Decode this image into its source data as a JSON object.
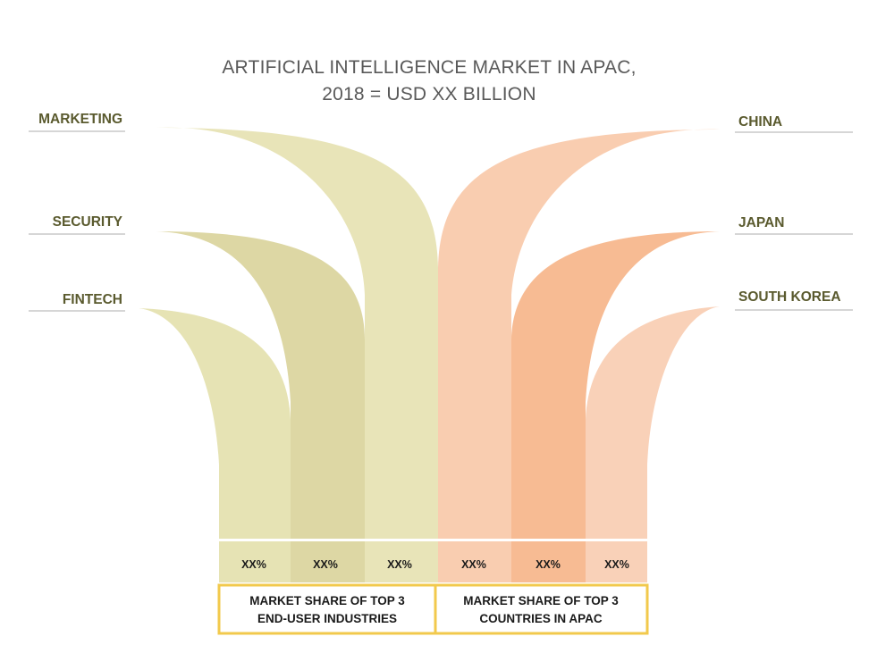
{
  "chart_data": {
    "type": "other",
    "title_lines": [
      "ARTIFICIAL INTELLIGENCE MARKET IN APAC,",
      "2018 = USD XX BILLION"
    ],
    "groups": [
      {
        "caption_lines": [
          "MARKET SHARE OF TOP 3",
          "END-USER INDUSTRIES"
        ],
        "items": [
          {
            "label": "MARKETING",
            "value": "XX%"
          },
          {
            "label": "SECURITY",
            "value": "XX%"
          },
          {
            "label": "FINTECH",
            "value": "XX%"
          }
        ]
      },
      {
        "caption_lines": [
          "MARKET SHARE OF TOP 3",
          "COUNTRIES IN APAC"
        ],
        "items": [
          {
            "label": "CHINA",
            "value": "XX%"
          },
          {
            "label": "JAPAN",
            "value": "XX%"
          },
          {
            "label": "SOUTH KOREA",
            "value": "XX%"
          }
        ]
      }
    ],
    "colors": {
      "industry": [
        "#e8e4b8",
        "#ddd7a4",
        "#e6e3b4"
      ],
      "country": [
        "#f9cdb0",
        "#f7bb93",
        "#f9d1b8"
      ],
      "label_text": "#5a5a2e",
      "title_text": "#595959",
      "box_border": "#f2c94c",
      "divider": "#c8c8c8"
    }
  }
}
